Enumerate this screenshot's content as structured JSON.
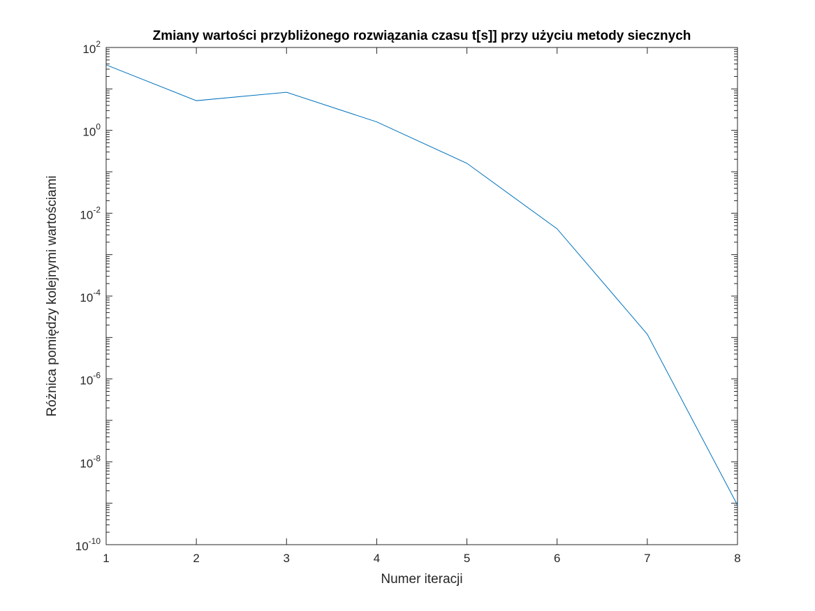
{
  "chart_data": {
    "type": "line",
    "title": "Zmiany wartości przybliżonego rozwiązania czasu t[s]] przy użyciu metody siecznych",
    "xlabel": "Numer iteracji",
    "ylabel": "Różnica pomiędzy kolejnymi wartościami",
    "yscale": "log",
    "xlim": [
      1,
      8
    ],
    "ylim_exp": [
      -10,
      2
    ],
    "xticks": [
      "1",
      "2",
      "3",
      "4",
      "5",
      "6",
      "7",
      "8"
    ],
    "yticks_base": "10",
    "yticks_exp": [
      "-10",
      "-8",
      "-6",
      "-4",
      "-2",
      "0",
      "2"
    ],
    "grid": false,
    "series": [
      {
        "color": "#0072bd",
        "x": [
          1,
          2,
          3,
          4,
          5,
          6,
          7,
          8
        ],
        "y": [
          38,
          5.2,
          8.3,
          1.6,
          0.16,
          0.0042,
          1.2e-05,
          9e-10
        ]
      }
    ]
  }
}
